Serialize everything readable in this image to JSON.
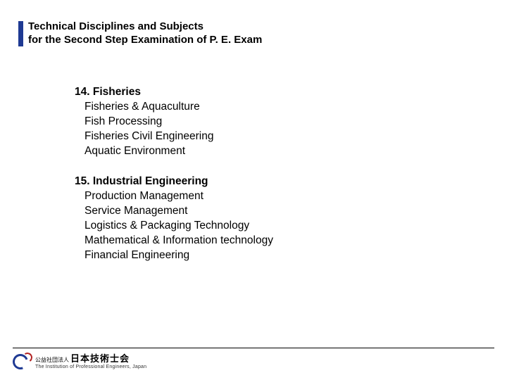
{
  "colors": {
    "accent": "#1f3a93",
    "text": "#000000",
    "rule": "#000000",
    "logo_red": "#b22222",
    "background": "#ffffff"
  },
  "typography": {
    "header_fontsize": 15,
    "body_fontsize": 15.5,
    "footer_jp_fontsize": 13,
    "footer_en_fontsize": 7,
    "font_family": "Arial"
  },
  "header": {
    "line1": "Technical Disciplines and Subjects",
    "line2": "for the Second Step Examination of P. E. Exam"
  },
  "sections": [
    {
      "number": "14.",
      "title": "Fisheries",
      "items": [
        "Fisheries & Aquaculture",
        "Fish Processing",
        "Fisheries Civil Engineering",
        "Aquatic Environment"
      ]
    },
    {
      "number": "15.",
      "title": "Industrial Engineering",
      "items": [
        "Production Management",
        "Service Management",
        "Logistics & Packaging Technology",
        "Mathematical & Information technology",
        "Financial Engineering"
      ]
    }
  ],
  "footer": {
    "org_prefix": "公益社団法人",
    "org_name_jp": "日本技術士会",
    "org_name_en": "The Institution of Professional Engineers, Japan"
  }
}
